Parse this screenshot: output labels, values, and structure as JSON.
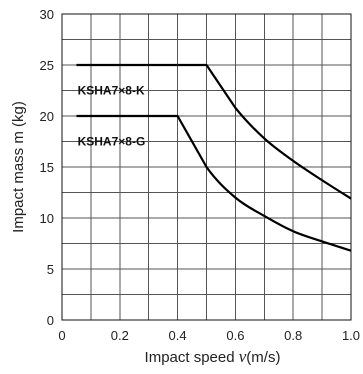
{
  "chart_data": {
    "type": "line",
    "xlabel_text": "Impact speed ",
    "xlabel_var": "v",
    "xlabel_unit": "(m/s)",
    "ylabel": "Impact mass m (kg)",
    "xlim": [
      0,
      1.0
    ],
    "ylim": [
      0,
      30
    ],
    "grid": true,
    "x_ticks": [
      0,
      0.2,
      0.4,
      0.6,
      0.8,
      1.0
    ],
    "x_tick_labels": [
      "0",
      "0.2",
      "0.4",
      "0.6",
      "0.8",
      "1.0"
    ],
    "x_grid_step": 0.1,
    "y_ticks": [
      0,
      5,
      10,
      15,
      20,
      25,
      30
    ],
    "y_tick_labels": [
      "0",
      "5",
      "10",
      "15",
      "20",
      "25",
      "30"
    ],
    "y_grid_step": 2.5,
    "series": [
      {
        "name": "KSHA7×8-K",
        "x": [
          0.05,
          0.1,
          0.2,
          0.3,
          0.4,
          0.5,
          0.6,
          0.7,
          0.8,
          0.9,
          1.0
        ],
        "y": [
          25,
          25,
          25,
          25,
          25,
          25,
          20.8,
          17.8,
          15.6,
          13.7,
          11.9
        ]
      },
      {
        "name": "KSHA7×8-G",
        "x": [
          0.05,
          0.1,
          0.2,
          0.3,
          0.4,
          0.5,
          0.6,
          0.7,
          0.8,
          0.9,
          1.0
        ],
        "y": [
          20,
          20,
          20,
          20,
          20,
          15.0,
          12.0,
          10.2,
          8.7,
          7.7,
          6.8
        ]
      }
    ]
  }
}
